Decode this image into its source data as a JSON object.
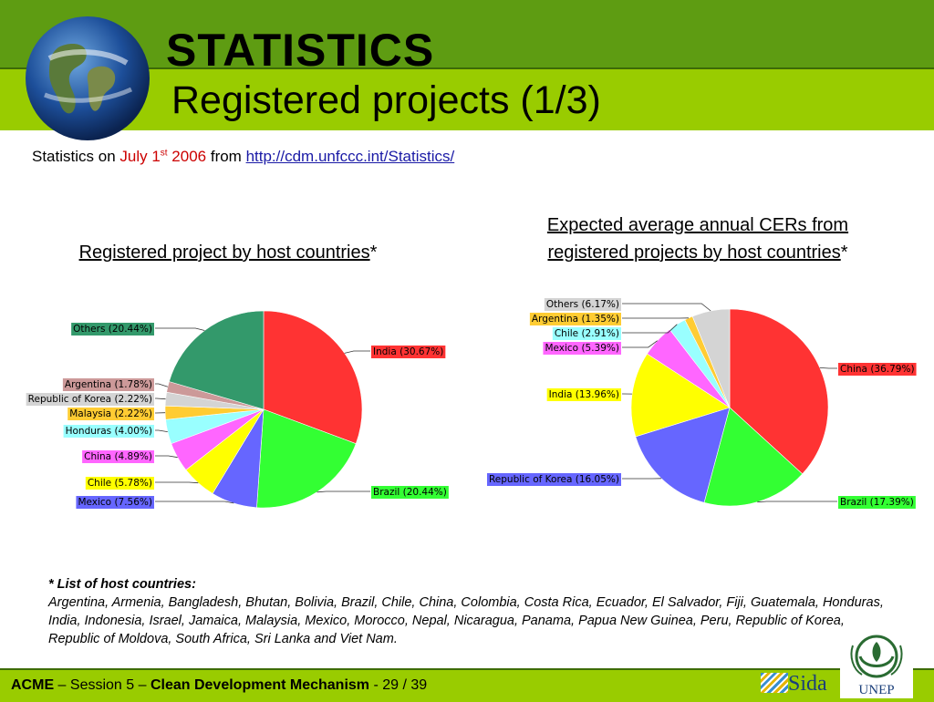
{
  "header": {
    "title": "STATISTICS",
    "subtitle": "Registered projects (1/3)"
  },
  "stats_line": {
    "prefix": "Statistics on ",
    "date_month_day": "July 1",
    "date_suffix": "st",
    "date_year": " 2006",
    "middle": " from ",
    "link": "http://cdm.unfccc.int/Statistics/"
  },
  "chart_data": [
    {
      "type": "pie",
      "title": "Registered project by host countries",
      "title_mark": "*",
      "series": [
        {
          "label": "India (30.67%)",
          "value": 30.67,
          "color": "#ff3333"
        },
        {
          "label": "Brazil (20.44%)",
          "value": 20.44,
          "color": "#33ff33"
        },
        {
          "label": "Mexico (7.56%)",
          "value": 7.56,
          "color": "#6666ff"
        },
        {
          "label": "Chile (5.78%)",
          "value": 5.78,
          "color": "#ffff00"
        },
        {
          "label": "China (4.89%)",
          "value": 4.89,
          "color": "#ff66ff"
        },
        {
          "label": "Honduras (4.00%)",
          "value": 4.0,
          "color": "#99ffff"
        },
        {
          "label": "Malaysia (2.22%)",
          "value": 2.22,
          "color": "#ffcc33"
        },
        {
          "label": "Republic of Korea (2.22%)",
          "value": 2.22,
          "color": "#d4d4d4"
        },
        {
          "label": "Argentina (1.78%)",
          "value": 1.78,
          "color": "#cc9999"
        },
        {
          "label": "Others (20.44%)",
          "value": 20.44,
          "color": "#33996b"
        }
      ]
    },
    {
      "type": "pie",
      "title_line1": "Expected average annual CERs from",
      "title_line2": "registered projects by host countries",
      "title_mark": "*",
      "series": [
        {
          "label": "China (36.79%)",
          "value": 36.79,
          "color": "#ff3333"
        },
        {
          "label": "Brazil (17.39%)",
          "value": 17.39,
          "color": "#33ff33"
        },
        {
          "label": "Republic of Korea (16.05%)",
          "value": 16.05,
          "color": "#6666ff"
        },
        {
          "label": "India (13.96%)",
          "value": 13.96,
          "color": "#ffff00"
        },
        {
          "label": "Mexico (5.39%)",
          "value": 5.39,
          "color": "#ff66ff"
        },
        {
          "label": "Chile (2.91%)",
          "value": 2.91,
          "color": "#99ffff"
        },
        {
          "label": "Argentina (1.35%)",
          "value": 1.35,
          "color": "#ffcc33"
        },
        {
          "label": "Others (6.17%)",
          "value": 6.17,
          "color": "#d4d4d4"
        }
      ]
    }
  ],
  "note": {
    "head": "* List of host countries:",
    "body": "Argentina, Armenia, Bangladesh, Bhutan, Bolivia, Brazil, Chile, China, Colombia, Costa Rica, Ecuador, El Salvador, Fiji, Guatemala, Honduras, India, Indonesia, Israel, Jamaica, Malaysia, Mexico, Morocco, Nepal, Nicaragua, Panama, Papua New Guinea, Peru, Republic of Korea, Republic of Moldova, South Africa, Sri Lanka and Viet Nam."
  },
  "footer": {
    "org": "ACME",
    "sep1": " – Session 5 – ",
    "course": "Clean Development Mechanism",
    "pages": " - 29 / 39",
    "sida": "Sida",
    "unep": "UNEP"
  }
}
